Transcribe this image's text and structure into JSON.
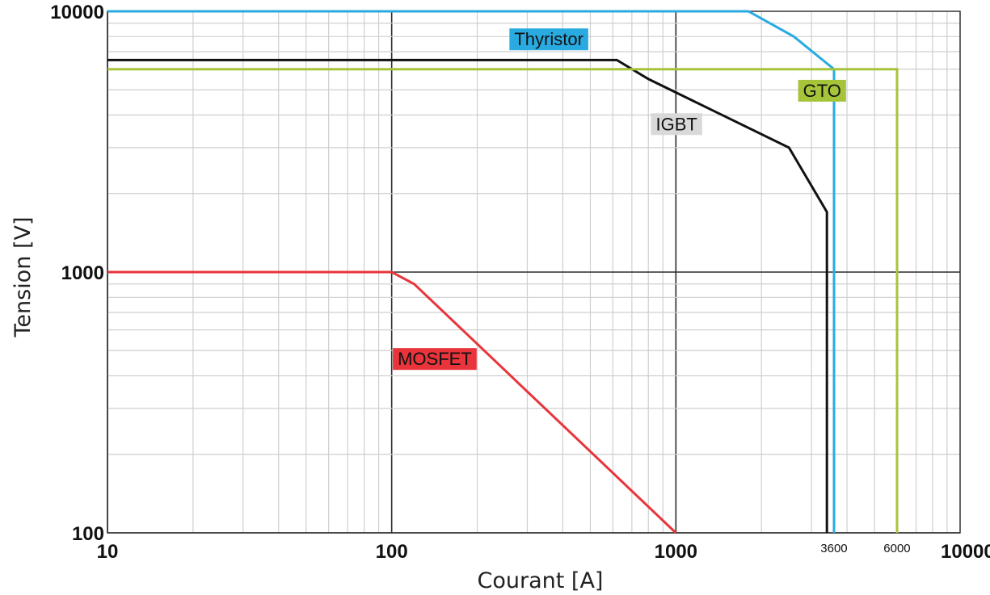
{
  "chart_data": {
    "type": "line",
    "title": "",
    "xlabel": "Courant [A]",
    "ylabel": "Tension [V]",
    "x_scale": "log",
    "y_scale": "log",
    "xlim": [
      10,
      10000
    ],
    "ylim": [
      100,
      10000
    ],
    "grid": true,
    "x_ticks": [
      {
        "value": 10,
        "label": "10",
        "style": "major"
      },
      {
        "value": 100,
        "label": "100",
        "style": "major"
      },
      {
        "value": 1000,
        "label": "1000",
        "style": "major"
      },
      {
        "value": 3600,
        "label": "3600",
        "style": "small"
      },
      {
        "value": 6000,
        "label": "6000",
        "style": "small"
      },
      {
        "value": 10000,
        "label": "10000",
        "style": "major"
      }
    ],
    "y_ticks": [
      {
        "value": 100,
        "label": "100"
      },
      {
        "value": 1000,
        "label": "1000"
      },
      {
        "value": 10000,
        "label": "10000"
      }
    ],
    "series": [
      {
        "name": "Thyristor",
        "color": "#29abe2",
        "label_bg": "#29abe2",
        "label_at": [
          270,
          7400
        ],
        "points": [
          [
            10,
            10000
          ],
          [
            1800,
            10000
          ],
          [
            2600,
            8000
          ],
          [
            3600,
            6000
          ],
          [
            3600,
            100
          ]
        ]
      },
      {
        "name": "IGBT",
        "color": "#111111",
        "label_bg": "#d9d9d9",
        "label_at": [
          850,
          3500
        ],
        "points": [
          [
            10,
            6500
          ],
          [
            620,
            6500
          ],
          [
            800,
            5500
          ],
          [
            2500,
            3000
          ],
          [
            3400,
            1700
          ],
          [
            3400,
            100
          ]
        ]
      },
      {
        "name": "GTO",
        "color": "#a6c43a",
        "label_bg": "#a6c43a",
        "label_at": [
          2800,
          4700
        ],
        "points": [
          [
            10,
            6000
          ],
          [
            6000,
            6000
          ],
          [
            6000,
            100
          ]
        ]
      },
      {
        "name": "MOSFET",
        "color": "#e8343a",
        "label_bg": "#e8343a",
        "label_at": [
          105,
          440
        ],
        "points": [
          [
            10,
            1000
          ],
          [
            100,
            1000
          ],
          [
            120,
            900
          ],
          [
            1000,
            100
          ]
        ]
      }
    ]
  }
}
